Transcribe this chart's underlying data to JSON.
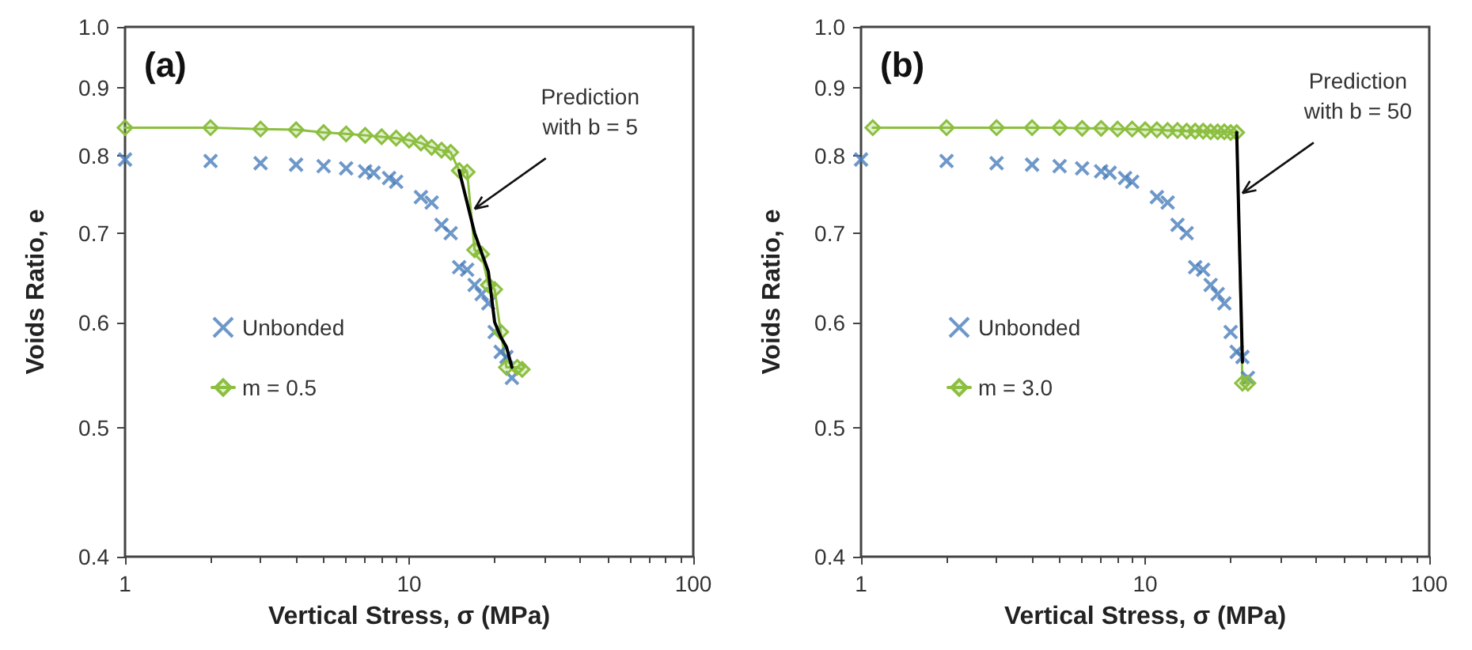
{
  "chart_data": [
    {
      "type": "scatter",
      "title": "(a)",
      "xlabel": "Vertical Stress, σ (MPa)",
      "ylabel": "Voids Ratio, e",
      "log": "xy",
      "grid": false,
      "legend": "left",
      "xlim": [
        1,
        100
      ],
      "xticks": [
        1,
        10,
        100
      ],
      "ylim": [
        0.4,
        1.0
      ],
      "yticks": [
        0.4,
        0.5,
        0.6,
        0.7,
        0.8,
        0.9,
        {
          "value": 1.0,
          "label": "1.0"
        }
      ],
      "annotations": [
        {
          "text": "Prediction with b = 5",
          "x": 17,
          "y": 0.73
        }
      ],
      "series": [
        {
          "name": "Unbonded",
          "marker": "cross",
          "color": "#4a7ebb",
          "x": [
            1,
            2,
            3,
            4,
            5,
            6,
            7,
            7.5,
            8.5,
            9,
            11,
            12,
            13,
            14,
            15,
            16,
            17,
            18,
            19,
            20,
            21,
            22,
            23
          ],
          "values": [
            0.795,
            0.793,
            0.79,
            0.788,
            0.786,
            0.783,
            0.779,
            0.777,
            0.77,
            0.765,
            0.745,
            0.738,
            0.71,
            0.7,
            0.66,
            0.657,
            0.64,
            0.63,
            0.62,
            0.59,
            0.57,
            0.565,
            0.545
          ]
        },
        {
          "name": "m = 0.5",
          "type": "line",
          "marker": "diamond",
          "color": "#8cbf3f",
          "x": [
            1,
            2,
            3,
            4,
            5,
            6,
            7,
            8,
            9,
            10,
            11,
            12,
            13,
            14,
            15,
            16,
            17,
            18,
            19,
            20,
            21,
            22,
            24,
            25
          ],
          "values": [
            0.84,
            0.84,
            0.838,
            0.837,
            0.833,
            0.831,
            0.829,
            0.827,
            0.825,
            0.822,
            0.818,
            0.812,
            0.808,
            0.805,
            0.78,
            0.778,
            0.68,
            0.675,
            0.64,
            0.635,
            0.59,
            0.555,
            0.555,
            0.553
          ]
        },
        {
          "type": "line",
          "marker": "none",
          "color": "#000000",
          "x": [
            15,
            17,
            19,
            20,
            21,
            22,
            23
          ],
          "values": [
            0.78,
            0.7,
            0.655,
            0.6,
            0.585,
            0.575,
            0.555
          ]
        }
      ]
    },
    {
      "type": "scatter",
      "title": "(b)",
      "xlabel": "Vertical Stress, σ (MPa)",
      "ylabel": "Voids Ratio, e",
      "log": "xy",
      "grid": false,
      "legend": "left",
      "xlim": [
        1,
        100
      ],
      "xticks": [
        1,
        10,
        100
      ],
      "ylim": [
        0.4,
        1.0
      ],
      "yticks": [
        0.4,
        0.5,
        0.6,
        0.7,
        0.8,
        0.9,
        {
          "value": 1.0,
          "label": "1.0"
        }
      ],
      "annotations": [
        {
          "text": "Prediction with b = 50",
          "x": 22,
          "y": 0.75
        }
      ],
      "series": [
        {
          "name": "Unbonded",
          "marker": "cross",
          "color": "#4a7ebb",
          "x": [
            1,
            2,
            3,
            4,
            5,
            6,
            7,
            7.5,
            8.5,
            9,
            11,
            12,
            13,
            14,
            15,
            16,
            17,
            18,
            19,
            20,
            21,
            22,
            23
          ],
          "values": [
            0.795,
            0.793,
            0.79,
            0.788,
            0.786,
            0.783,
            0.779,
            0.777,
            0.77,
            0.765,
            0.745,
            0.738,
            0.71,
            0.7,
            0.66,
            0.657,
            0.64,
            0.63,
            0.62,
            0.59,
            0.57,
            0.565,
            0.545
          ]
        },
        {
          "name": "m = 3.0",
          "type": "line",
          "marker": "diamond",
          "color": "#8cbf3f",
          "x": [
            1.1,
            2,
            3,
            4,
            5,
            6,
            7,
            8,
            9,
            10,
            11,
            12,
            13,
            14,
            15,
            16,
            17,
            18,
            19,
            20,
            21,
            22,
            23
          ],
          "values": [
            0.84,
            0.84,
            0.84,
            0.84,
            0.84,
            0.839,
            0.839,
            0.838,
            0.838,
            0.837,
            0.837,
            0.836,
            0.836,
            0.835,
            0.835,
            0.835,
            0.834,
            0.834,
            0.834,
            0.833,
            0.833,
            0.54,
            0.54
          ]
        },
        {
          "type": "line",
          "marker": "none",
          "color": "#000000",
          "x": [
            21,
            22
          ],
          "values": [
            0.833,
            0.56
          ]
        }
      ]
    }
  ]
}
